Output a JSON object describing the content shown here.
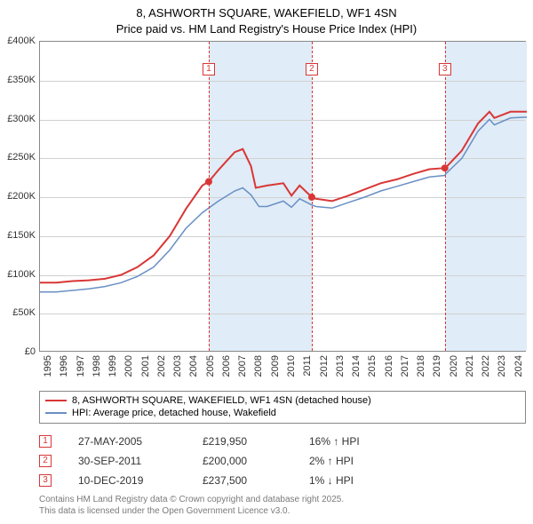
{
  "title_line1": "8, ASHWORTH SQUARE, WAKEFIELD, WF1 4SN",
  "title_line2": "Price paid vs. HM Land Registry's House Price Index (HPI)",
  "chart": {
    "type": "line",
    "x_years": [
      1995,
      1996,
      1997,
      1998,
      1999,
      2000,
      2001,
      2002,
      2003,
      2004,
      2005,
      2006,
      2007,
      2008,
      2009,
      2010,
      2011,
      2012,
      2013,
      2014,
      2015,
      2016,
      2017,
      2018,
      2019,
      2020,
      2021,
      2022,
      2023,
      2024
    ],
    "ylim": [
      0,
      400000
    ],
    "ytick_step": 50000,
    "y_tick_labels": [
      "£0",
      "£50K",
      "£100K",
      "£150K",
      "£200K",
      "£250K",
      "£300K",
      "£350K",
      "£400K"
    ],
    "shaded_ranges": [
      [
        2005.4,
        2011.75
      ],
      [
        2019.95,
        2025
      ]
    ],
    "background_color": "#ffffff",
    "shade_color": "#e0ecf7",
    "grid_color": "#d1d1d1",
    "series": [
      {
        "name": "8, ASHWORTH SQUARE, WAKEFIELD, WF1 4SN (detached house)",
        "color": "#d93636",
        "width": 2,
        "points": [
          [
            1995,
            90000
          ],
          [
            1996,
            90000
          ],
          [
            1997,
            92000
          ],
          [
            1998,
            93000
          ],
          [
            1999,
            95000
          ],
          [
            2000,
            100000
          ],
          [
            2001,
            110000
          ],
          [
            2002,
            125000
          ],
          [
            2003,
            150000
          ],
          [
            2004,
            185000
          ],
          [
            2005,
            215000
          ],
          [
            2005.4,
            219950
          ],
          [
            2006,
            235000
          ],
          [
            2007,
            258000
          ],
          [
            2007.5,
            262000
          ],
          [
            2008,
            240000
          ],
          [
            2008.3,
            212000
          ],
          [
            2009,
            215000
          ],
          [
            2010,
            218000
          ],
          [
            2010.5,
            202000
          ],
          [
            2011,
            215000
          ],
          [
            2011.75,
            200000
          ],
          [
            2012,
            198000
          ],
          [
            2013,
            195000
          ],
          [
            2014,
            202000
          ],
          [
            2015,
            210000
          ],
          [
            2016,
            218000
          ],
          [
            2017,
            223000
          ],
          [
            2018,
            230000
          ],
          [
            2019,
            236000
          ],
          [
            2019.95,
            237500
          ],
          [
            2020,
            238000
          ],
          [
            2021,
            260000
          ],
          [
            2022,
            295000
          ],
          [
            2022.7,
            310000
          ],
          [
            2023,
            302000
          ],
          [
            2024,
            310000
          ],
          [
            2025,
            310000
          ]
        ]
      },
      {
        "name": "HPI: Average price, detached house, Wakefield",
        "color": "#6a8fc5",
        "width": 1.5,
        "points": [
          [
            1995,
            78000
          ],
          [
            1996,
            78000
          ],
          [
            1997,
            80000
          ],
          [
            1998,
            82000
          ],
          [
            1999,
            85000
          ],
          [
            2000,
            90000
          ],
          [
            2001,
            98000
          ],
          [
            2002,
            110000
          ],
          [
            2003,
            132000
          ],
          [
            2004,
            160000
          ],
          [
            2005,
            180000
          ],
          [
            2006,
            195000
          ],
          [
            2007,
            208000
          ],
          [
            2007.5,
            212000
          ],
          [
            2008,
            203000
          ],
          [
            2008.5,
            188000
          ],
          [
            2009,
            188000
          ],
          [
            2010,
            195000
          ],
          [
            2010.5,
            187000
          ],
          [
            2011,
            198000
          ],
          [
            2011.75,
            190000
          ],
          [
            2012,
            188000
          ],
          [
            2013,
            186000
          ],
          [
            2014,
            193000
          ],
          [
            2015,
            200000
          ],
          [
            2016,
            208000
          ],
          [
            2017,
            214000
          ],
          [
            2018,
            220000
          ],
          [
            2019,
            226000
          ],
          [
            2019.95,
            228000
          ],
          [
            2020,
            230000
          ],
          [
            2021,
            250000
          ],
          [
            2022,
            285000
          ],
          [
            2022.7,
            300000
          ],
          [
            2023,
            293000
          ],
          [
            2024,
            302000
          ],
          [
            2025,
            303000
          ]
        ]
      }
    ],
    "markers": [
      {
        "num": "1",
        "x": 2005.4,
        "y": 219950
      },
      {
        "num": "2",
        "x": 2011.75,
        "y": 200000
      },
      {
        "num": "3",
        "x": 2019.95,
        "y": 237500
      }
    ]
  },
  "legend": {
    "items": [
      {
        "label": "8, ASHWORTH SQUARE, WAKEFIELD, WF1 4SN (detached house)",
        "color": "#d93636"
      },
      {
        "label": "HPI: Average price, detached house, Wakefield",
        "color": "#6a8fc5"
      }
    ]
  },
  "sales": [
    {
      "num": "1",
      "date": "27-MAY-2005",
      "price": "£219,950",
      "pct": "16% ↑ HPI"
    },
    {
      "num": "2",
      "date": "30-SEP-2011",
      "price": "£200,000",
      "pct": "2% ↑ HPI"
    },
    {
      "num": "3",
      "date": "10-DEC-2019",
      "price": "£237,500",
      "pct": "1% ↓ HPI"
    }
  ],
  "footer_line1": "Contains HM Land Registry data © Crown copyright and database right 2025.",
  "footer_line2": "This data is licensed under the Open Government Licence v3.0."
}
